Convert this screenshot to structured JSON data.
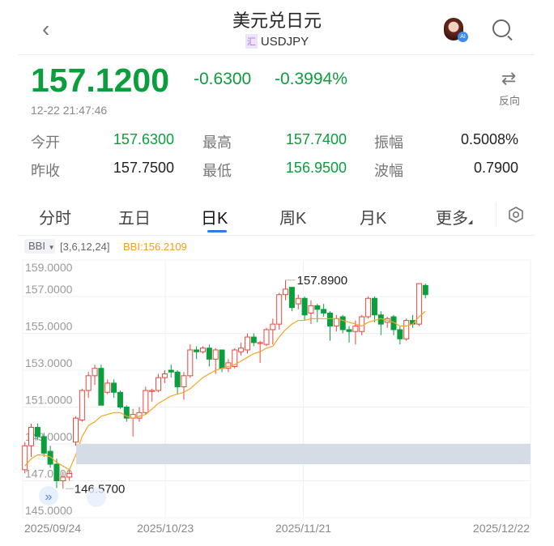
{
  "header": {
    "title": "美元兑日元",
    "badge": "汇",
    "symbol": "USDJPY",
    "back_icon": "chevron-left-icon",
    "avatar_badge": "AI",
    "search_icon": "search-icon"
  },
  "quote": {
    "price": "157.1200",
    "change": "-0.6300",
    "change_pct": "-0.3994%",
    "time": "12-22 21:47:46",
    "reverse_label": "反向",
    "reverse_icon": "swap-arrows-icon",
    "color_down": "#0a9e3c",
    "color_up": "#f0433a"
  },
  "stats": [
    {
      "label": "今开",
      "value": "157.6300",
      "green": true
    },
    {
      "label": "最高",
      "value": "157.7400",
      "green": true
    },
    {
      "label": "振幅",
      "value": "0.5008%",
      "green": false
    },
    {
      "label": "昨收",
      "value": "157.7500",
      "green": false
    },
    {
      "label": "最低",
      "value": "156.9500",
      "green": true
    },
    {
      "label": "波幅",
      "value": "0.7900",
      "green": false
    }
  ],
  "tabs": [
    {
      "label": "分时"
    },
    {
      "label": "五日"
    },
    {
      "label": "日K",
      "active": true
    },
    {
      "label": "周K"
    },
    {
      "label": "月K"
    },
    {
      "label": "更多"
    }
  ],
  "indicator": {
    "name": "BBI",
    "params": "[3,6,12,24]",
    "value": "BBI:156.2109",
    "color": "#f5a623"
  },
  "chart_data": {
    "type": "candlestick",
    "ylim": [
      145,
      159
    ],
    "yticks": [
      "159.0000",
      "157.0000",
      "155.0000",
      "153.0000",
      "151.0000",
      "149.0000",
      "147.0000",
      "145.0000"
    ],
    "xticks": [
      "2025/09/24",
      "2025/10/23",
      "2025/11/21",
      "2025/12/22"
    ],
    "max_label": "157.8900",
    "min_label": "146.5700",
    "ohlc": [
      [
        147.6,
        149.1,
        147.4,
        148.9
      ],
      [
        148.9,
        150.1,
        148.3,
        149.9
      ],
      [
        149.9,
        150.1,
        149.2,
        149.4
      ],
      [
        149.4,
        149.6,
        148.3,
        148.5
      ],
      [
        148.6,
        148.9,
        147.7,
        147.9
      ],
      [
        147.9,
        148.2,
        146.6,
        147.0
      ],
      [
        147.0,
        147.5,
        146.57,
        147.2
      ],
      [
        147.2,
        147.6,
        147.0,
        147.4
      ],
      [
        149.1,
        150.5,
        148.9,
        150.4
      ],
      [
        150.3,
        152.0,
        150.2,
        151.9
      ],
      [
        151.9,
        152.9,
        151.5,
        152.7
      ],
      [
        152.7,
        153.3,
        152.2,
        153.1
      ],
      [
        153.1,
        153.3,
        151.1,
        151.1
      ],
      [
        151.8,
        152.5,
        151.7,
        152.3
      ],
      [
        152.3,
        152.5,
        151.5,
        151.8
      ],
      [
        151.8,
        151.9,
        150.9,
        151.0
      ],
      [
        151.0,
        151.1,
        150.2,
        150.4
      ],
      [
        150.4,
        150.9,
        149.4,
        150.6
      ],
      [
        150.4,
        151.0,
        150.2,
        150.7
      ],
      [
        150.7,
        152.1,
        150.6,
        151.9
      ],
      [
        151.9,
        152.0,
        151.3,
        151.9
      ],
      [
        151.9,
        152.8,
        151.8,
        152.6
      ],
      [
        152.6,
        153.0,
        152.3,
        152.8
      ],
      [
        153.0,
        153.3,
        152.6,
        152.9
      ],
      [
        152.9,
        153.0,
        151.7,
        152.1
      ],
      [
        152.1,
        152.9,
        151.4,
        152.7
      ],
      [
        152.7,
        154.4,
        152.6,
        154.1
      ],
      [
        154.1,
        154.3,
        153.6,
        154.0
      ],
      [
        154.0,
        154.3,
        153.9,
        154.2
      ],
      [
        154.2,
        154.4,
        153.2,
        153.6
      ],
      [
        153.6,
        154.2,
        152.8,
        154.1
      ],
      [
        154.1,
        154.1,
        152.9,
        153.1
      ],
      [
        153.1,
        153.6,
        152.9,
        153.4
      ],
      [
        153.2,
        154.2,
        153.1,
        154.1
      ],
      [
        154.0,
        154.5,
        153.8,
        154.2
      ],
      [
        154.1,
        155.0,
        153.9,
        154.8
      ],
      [
        154.8,
        155.0,
        154.3,
        154.5
      ],
      [
        154.5,
        154.6,
        153.4,
        154.5
      ],
      [
        154.4,
        155.3,
        154.3,
        155.2
      ],
      [
        155.2,
        155.8,
        154.4,
        155.5
      ],
      [
        155.5,
        157.2,
        155.2,
        157.1
      ],
      [
        157.1,
        157.89,
        156.8,
        157.4
      ],
      [
        157.5,
        157.5,
        156.2,
        156.4
      ],
      [
        156.6,
        157.1,
        156.3,
        156.9
      ],
      [
        156.9,
        157.0,
        155.7,
        156.0
      ],
      [
        156.1,
        156.8,
        155.5,
        156.5
      ],
      [
        156.5,
        156.6,
        155.6,
        156.3
      ],
      [
        156.3,
        156.6,
        155.9,
        156.1
      ],
      [
        156.1,
        156.2,
        154.6,
        155.4
      ],
      [
        155.4,
        156.0,
        155.1,
        155.8
      ],
      [
        155.9,
        156.0,
        155.0,
        155.2
      ],
      [
        155.2,
        155.4,
        154.5,
        155.1
      ],
      [
        155.1,
        155.7,
        154.4,
        155.4
      ],
      [
        155.1,
        156.0,
        154.9,
        155.9
      ],
      [
        155.9,
        157.0,
        155.8,
        156.9
      ],
      [
        156.9,
        157.0,
        155.6,
        156.0
      ],
      [
        156.0,
        156.2,
        154.9,
        155.5
      ],
      [
        155.6,
        155.9,
        155.3,
        155.8
      ],
      [
        155.9,
        156.0,
        154.9,
        155.2
      ],
      [
        155.2,
        155.4,
        154.4,
        154.7
      ],
      [
        154.7,
        155.8,
        154.6,
        155.7
      ],
      [
        155.7,
        156.0,
        155.3,
        155.5
      ],
      [
        155.5,
        157.7,
        155.4,
        157.7
      ],
      [
        157.6,
        157.7,
        156.9,
        157.1
      ]
    ],
    "bbi": [
      147.8,
      148.2,
      148.4,
      148.4,
      148.3,
      148.0,
      147.8,
      147.6,
      148.4,
      149.4,
      150.0,
      150.2,
      150.5,
      150.6,
      150.7,
      150.7,
      150.5,
      150.4,
      150.5,
      150.6,
      150.9,
      151.2,
      151.4,
      151.6,
      151.7,
      151.8,
      152.0,
      152.3,
      152.6,
      152.8,
      153.0,
      153.1,
      153.2,
      153.3,
      153.5,
      153.7,
      153.9,
      154.0,
      154.2,
      154.3,
      154.8,
      155.2,
      155.5,
      155.7,
      155.7,
      155.8,
      155.8,
      155.8,
      155.8,
      155.8,
      155.7,
      155.6,
      155.5,
      155.4,
      155.6,
      155.7,
      155.8,
      155.7,
      155.6,
      155.4,
      155.4,
      155.5,
      155.9,
      156.2
    ],
    "shaded_band": [
      147.9,
      149.0
    ]
  }
}
